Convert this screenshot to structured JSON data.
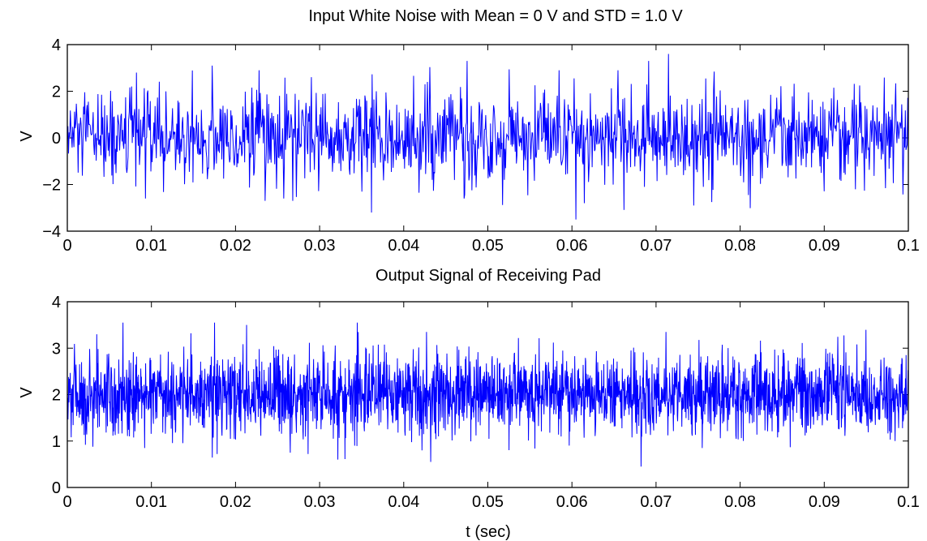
{
  "chart_data": [
    {
      "type": "line",
      "title": "Input White Noise with Mean = 0 V and STD = 1.0 V",
      "xlabel": "",
      "ylabel": "V",
      "xlim": [
        0,
        0.1
      ],
      "ylim": [
        -4,
        4
      ],
      "x_ticks": [
        "0",
        "0.01",
        "0.02",
        "0.03",
        "0.04",
        "0.05",
        "0.06",
        "0.07",
        "0.08",
        "0.09",
        "0.1"
      ],
      "y_ticks": [
        "−4",
        "−2",
        "0",
        "2",
        "4"
      ],
      "color": "#0000ff",
      "series": [
        {
          "description_values": "dense white-noise trace sampled across full x range",
          "mean": 0,
          "std": 1.0,
          "observed_max": 3.6,
          "observed_max_x": 0.0715,
          "observed_min": -3.5,
          "observed_min_x": 0.0605,
          "peaks": [
            [
              0.0172,
              3.1
            ],
            [
              0.0475,
              3.3
            ],
            [
              0.0691,
              3.3
            ],
            [
              0.0715,
              3.6
            ],
            [
              0.0228,
              2.9
            ],
            [
              0.0585,
              2.9
            ],
            [
              0.0655,
              2.9
            ],
            [
              0.0082,
              2.8
            ]
          ],
          "troughs": [
            [
              0.0605,
              -3.5
            ],
            [
              0.0362,
              -3.2
            ],
            [
              0.0093,
              -2.6
            ],
            [
              0.0235,
              -2.7
            ],
            [
              0.0268,
              -2.7
            ],
            [
              0.0745,
              -2.9
            ],
            [
              0.0472,
              -2.6
            ],
            [
              0.0615,
              -2.8
            ]
          ]
        }
      ]
    },
    {
      "type": "line",
      "title": "Output Signal of Receiving Pad",
      "xlabel": "t (sec)",
      "ylabel": "V",
      "xlim": [
        0,
        0.1
      ],
      "ylim": [
        0,
        4
      ],
      "x_ticks": [
        "0",
        "0.01",
        "0.02",
        "0.03",
        "0.04",
        "0.05",
        "0.06",
        "0.07",
        "0.08",
        "0.09",
        "0.1"
      ],
      "y_ticks": [
        "0",
        "1",
        "2",
        "3",
        "4"
      ],
      "color": "#0000ff",
      "series": [
        {
          "mean": 2.0,
          "std": 0.45,
          "observed_max": 3.7,
          "observed_max_x": 0.0682,
          "observed_min": 0.45,
          "observed_min_x": 0.0682,
          "peaks": [
            [
              0.0682,
              3.7
            ],
            [
              0.0175,
              3.55
            ],
            [
              0.0213,
              3.5
            ],
            [
              0.0427,
              3.35
            ],
            [
              0.0712,
              3.35
            ],
            [
              0.0035,
              3.3
            ]
          ],
          "troughs": [
            [
              0.0682,
              0.45
            ],
            [
              0.0432,
              0.55
            ],
            [
              0.0178,
              0.72
            ],
            [
              0.0265,
              0.75
            ],
            [
              0.0755,
              0.85
            ],
            [
              0.0092,
              0.85
            ]
          ]
        }
      ]
    }
  ]
}
